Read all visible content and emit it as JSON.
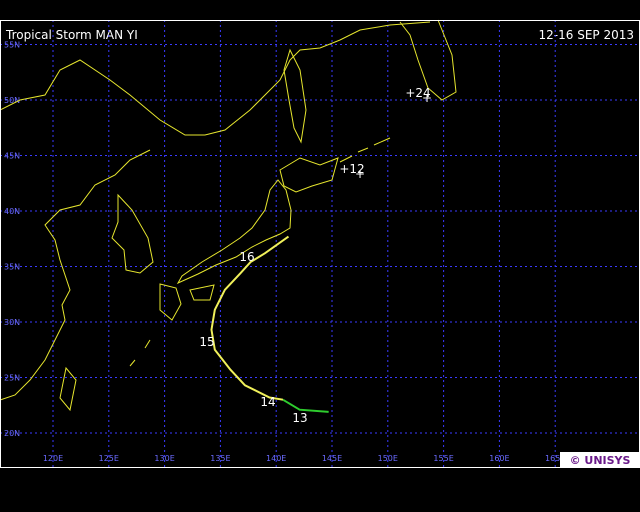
{
  "header": {
    "title": "Tropical Storm MAN YI",
    "date": "12-16 SEP 2013"
  },
  "map": {
    "lat_lines": [
      {
        "value": 20,
        "label": "20N"
      },
      {
        "value": 25,
        "label": "25N"
      },
      {
        "value": 30,
        "label": "30N"
      },
      {
        "value": 35,
        "label": "35N"
      },
      {
        "value": 40,
        "label": "40N"
      },
      {
        "value": 45,
        "label": "45N"
      },
      {
        "value": 50,
        "label": "50N"
      },
      {
        "value": 55,
        "label": "55N"
      }
    ],
    "lon_lines": [
      {
        "value": 120,
        "label": "120E"
      },
      {
        "value": 125,
        "label": "125E"
      },
      {
        "value": 130,
        "label": "130E"
      },
      {
        "value": 135,
        "label": "135E"
      },
      {
        "value": 140,
        "label": "140E"
      },
      {
        "value": 145,
        "label": "145E"
      },
      {
        "value": 150,
        "label": "150E"
      },
      {
        "value": 155,
        "label": "155E"
      },
      {
        "value": 160,
        "label": "160E"
      },
      {
        "value": 165,
        "label": "165E"
      }
    ],
    "track": [
      {
        "color": "#2ecc2e",
        "lon": [
          144.7,
          142.1,
          140.6
        ],
        "lat": [
          21.9,
          22.1,
          23.0
        ]
      },
      {
        "color": "#f0f05a",
        "lon": [
          140.6,
          139.4,
          137.2,
          135.9,
          134.5,
          134.2,
          134.5,
          135.4,
          136.8,
          137.7,
          139.0,
          141.1
        ],
        "lat": [
          23.0,
          23.2,
          24.3,
          25.7,
          27.5,
          29.3,
          31.1,
          32.9,
          34.4,
          35.4,
          36.2,
          37.7
        ]
      }
    ],
    "day_labels": [
      "13",
      "14",
      "15",
      "16"
    ],
    "forecast_labels": [
      "+12",
      "+24"
    ]
  },
  "footer": {
    "credit": "© UNISYS"
  }
}
